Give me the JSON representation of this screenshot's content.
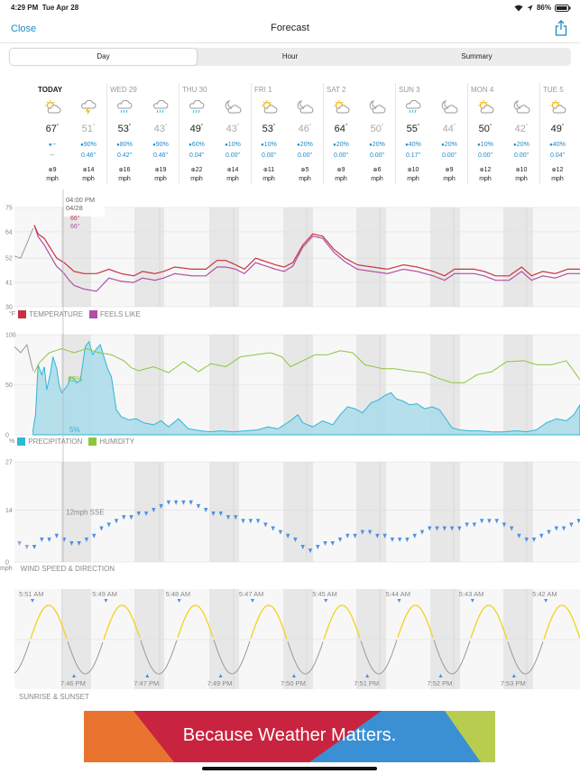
{
  "status_bar": {
    "time": "4:29 PM",
    "date": "Tue Apr 28",
    "battery": "86%"
  },
  "nav": {
    "close": "Close",
    "title": "Forecast"
  },
  "tabs": [
    {
      "label": "Day",
      "active": true
    },
    {
      "label": "Hour",
      "active": false
    },
    {
      "label": "Summary",
      "active": false
    }
  ],
  "days": [
    {
      "name": "TODAY",
      "today": true,
      "slots": [
        {
          "icon": "partly-sunny-icon",
          "temp": "67",
          "precip_pct": "--",
          "precip_amt": "--",
          "wind": "9",
          "wind_unit": "mph"
        },
        {
          "icon": "thunderstorm-icon",
          "temp": "51",
          "precip_pct": "90%",
          "precip_amt": "0.46\"",
          "wind": "14",
          "wind_unit": "mph"
        }
      ]
    },
    {
      "name": "WED 29",
      "slots": [
        {
          "icon": "rain-icon",
          "temp": "53",
          "precip_pct": "80%",
          "precip_amt": "0.42\"",
          "wind": "16",
          "wind_unit": "mph"
        },
        {
          "icon": "rain-icon",
          "temp": "43",
          "precip_pct": "90%",
          "precip_amt": "0.46\"",
          "wind": "19",
          "wind_unit": "mph"
        }
      ]
    },
    {
      "name": "THU 30",
      "slots": [
        {
          "icon": "rain-icon",
          "temp": "49",
          "precip_pct": "60%",
          "precip_amt": "0.04\"",
          "wind": "22",
          "wind_unit": "mph"
        },
        {
          "icon": "partly-cloudy-night-icon",
          "temp": "43",
          "precip_pct": "10%",
          "precip_amt": "0.00\"",
          "wind": "14",
          "wind_unit": "mph"
        }
      ]
    },
    {
      "name": "FRI 1",
      "slots": [
        {
          "icon": "partly-sunny-icon",
          "temp": "53",
          "precip_pct": "10%",
          "precip_amt": "0.00\"",
          "wind": "11",
          "wind_unit": "mph"
        },
        {
          "icon": "partly-cloudy-night-icon",
          "temp": "46",
          "precip_pct": "20%",
          "precip_amt": "0.00\"",
          "wind": "5",
          "wind_unit": "mph"
        }
      ]
    },
    {
      "name": "SAT 2",
      "slots": [
        {
          "icon": "partly-sunny-icon",
          "temp": "64",
          "precip_pct": "20%",
          "precip_amt": "0.00\"",
          "wind": "9",
          "wind_unit": "mph"
        },
        {
          "icon": "partly-cloudy-night-icon",
          "temp": "50",
          "precip_pct": "20%",
          "precip_amt": "0.00\"",
          "wind": "6",
          "wind_unit": "mph"
        }
      ]
    },
    {
      "name": "SUN 3",
      "slots": [
        {
          "icon": "rain-icon",
          "temp": "55",
          "precip_pct": "40%",
          "precip_amt": "0.17\"",
          "wind": "10",
          "wind_unit": "mph"
        },
        {
          "icon": "partly-cloudy-night-icon",
          "temp": "44",
          "precip_pct": "20%",
          "precip_amt": "0.00\"",
          "wind": "9",
          "wind_unit": "mph"
        }
      ]
    },
    {
      "name": "MON 4",
      "slots": [
        {
          "icon": "partly-sunny-icon",
          "temp": "50",
          "precip_pct": "10%",
          "precip_amt": "0.00\"",
          "wind": "12",
          "wind_unit": "mph"
        },
        {
          "icon": "partly-cloudy-night-icon",
          "temp": "42",
          "precip_pct": "20%",
          "precip_amt": "0.00\"",
          "wind": "10",
          "wind_unit": "mph"
        }
      ]
    },
    {
      "name": "TUE 5",
      "slots": [
        {
          "icon": "partly-sunny-icon",
          "temp": "49",
          "precip_pct": "40%",
          "precip_amt": "0.04\"",
          "wind": "12",
          "wind_unit": "mph"
        }
      ]
    }
  ],
  "degree": "°",
  "cursor": {
    "time": "04:00 PM",
    "date": "04/28",
    "temp": "66°",
    "feels": "66°",
    "humidity": "62%",
    "precip": "5%",
    "wind": "12mph SSE"
  },
  "chart_data": [
    {
      "type": "line",
      "name": "temperature",
      "ylim": [
        30,
        75
      ],
      "yticks": [
        "75",
        "64",
        "52",
        "41",
        "30"
      ],
      "unit_label": "°F",
      "series": [
        {
          "name": "TEMPERATURE",
          "color": "#c8323f"
        },
        {
          "name": "FEELS LIKE",
          "color": "#b04fa6"
        }
      ],
      "temp_knots": [
        [
          0,
          53
        ],
        [
          5,
          52
        ],
        [
          11,
          60
        ],
        [
          16,
          67
        ],
        [
          19,
          63
        ],
        [
          24,
          61
        ],
        [
          34,
          52
        ],
        [
          40,
          50
        ],
        [
          48,
          46
        ],
        [
          56,
          45
        ],
        [
          66,
          45
        ],
        [
          76,
          47
        ],
        [
          86,
          45
        ],
        [
          96,
          44
        ],
        [
          103,
          46
        ],
        [
          113,
          45
        ],
        [
          120,
          46
        ],
        [
          129,
          48
        ],
        [
          143,
          47
        ],
        [
          154,
          47
        ],
        [
          163,
          51
        ],
        [
          170,
          51
        ],
        [
          178,
          49
        ],
        [
          185,
          47
        ],
        [
          194,
          52
        ],
        [
          210,
          49
        ],
        [
          217,
          48
        ],
        [
          224,
          50
        ],
        [
          232,
          58
        ],
        [
          240,
          63
        ],
        [
          248,
          62
        ],
        [
          257,
          56
        ],
        [
          266,
          52
        ],
        [
          276,
          49
        ],
        [
          288,
          48
        ],
        [
          300,
          47
        ],
        [
          313,
          49
        ],
        [
          324,
          48
        ],
        [
          337,
          46
        ],
        [
          346,
          44
        ],
        [
          354,
          47
        ],
        [
          362,
          47
        ],
        [
          370,
          47
        ],
        [
          378,
          46
        ],
        [
          387,
          44
        ],
        [
          398,
          44
        ],
        [
          408,
          48
        ],
        [
          416,
          44
        ],
        [
          425,
          46
        ],
        [
          435,
          45
        ],
        [
          445,
          47
        ],
        [
          455,
          47
        ]
      ],
      "feels_offset": [
        [
          0,
          0
        ],
        [
          11,
          0
        ],
        [
          16,
          0
        ],
        [
          24,
          -3
        ],
        [
          36,
          -4
        ],
        [
          44,
          -6
        ],
        [
          56,
          -7
        ],
        [
          66,
          -8
        ],
        [
          76,
          -4
        ],
        [
          96,
          -3
        ],
        [
          129,
          -3
        ],
        [
          154,
          -3
        ],
        [
          170,
          -3
        ],
        [
          178,
          -2
        ],
        [
          194,
          -2
        ],
        [
          217,
          -2
        ],
        [
          232,
          -1
        ],
        [
          248,
          -1
        ],
        [
          276,
          -2
        ],
        [
          324,
          -2
        ],
        [
          354,
          -2
        ],
        [
          387,
          -2
        ],
        [
          455,
          -2
        ]
      ]
    },
    {
      "type": "area",
      "name": "precipitation_humidity",
      "ylim": [
        0,
        100
      ],
      "yticks": [
        "100",
        "50",
        "0"
      ],
      "unit_label": "%",
      "series": [
        {
          "name": "PRECIPITATION",
          "color": "#2fb6d8"
        },
        {
          "name": "HUMIDITY",
          "color": "#8cc63f"
        }
      ],
      "humidity_knots": [
        [
          0,
          88
        ],
        [
          5,
          82
        ],
        [
          10,
          90
        ],
        [
          15,
          64
        ],
        [
          16,
          62
        ],
        [
          20,
          72
        ],
        [
          28,
          82
        ],
        [
          38,
          86
        ],
        [
          48,
          82
        ],
        [
          58,
          86
        ],
        [
          68,
          82
        ],
        [
          78,
          80
        ],
        [
          88,
          74
        ],
        [
          94,
          67
        ],
        [
          100,
          64
        ],
        [
          112,
          68
        ],
        [
          124,
          62
        ],
        [
          136,
          73
        ],
        [
          148,
          63
        ],
        [
          158,
          71
        ],
        [
          170,
          68
        ],
        [
          182,
          78
        ],
        [
          194,
          80
        ],
        [
          206,
          82
        ],
        [
          215,
          78
        ],
        [
          222,
          68
        ],
        [
          232,
          74
        ],
        [
          242,
          80
        ],
        [
          252,
          80
        ],
        [
          262,
          84
        ],
        [
          272,
          82
        ],
        [
          282,
          70
        ],
        [
          296,
          66
        ],
        [
          306,
          66
        ],
        [
          316,
          64
        ],
        [
          330,
          62
        ],
        [
          342,
          56
        ],
        [
          352,
          52
        ],
        [
          362,
          52
        ],
        [
          372,
          60
        ],
        [
          384,
          63
        ],
        [
          396,
          73
        ],
        [
          410,
          74
        ],
        [
          420,
          70
        ],
        [
          432,
          70
        ],
        [
          444,
          74
        ],
        [
          455,
          55
        ]
      ],
      "precip_knots": [
        [
          15,
          5
        ],
        [
          17,
          20
        ],
        [
          19,
          70
        ],
        [
          22,
          60
        ],
        [
          24,
          68
        ],
        [
          26,
          45
        ],
        [
          29,
          62
        ],
        [
          31,
          78
        ],
        [
          34,
          66
        ],
        [
          36,
          50
        ],
        [
          38,
          42
        ],
        [
          40,
          45
        ],
        [
          43,
          50
        ],
        [
          45,
          58
        ],
        [
          48,
          56
        ],
        [
          50,
          52
        ],
        [
          53,
          54
        ],
        [
          57,
          88
        ],
        [
          60,
          93
        ],
        [
          63,
          80
        ],
        [
          66,
          86
        ],
        [
          69,
          90
        ],
        [
          72,
          78
        ],
        [
          75,
          66
        ],
        [
          78,
          58
        ],
        [
          82,
          25
        ],
        [
          86,
          18
        ],
        [
          92,
          15
        ],
        [
          98,
          16
        ],
        [
          104,
          12
        ],
        [
          112,
          10
        ],
        [
          118,
          14
        ],
        [
          124,
          8
        ],
        [
          132,
          16
        ],
        [
          140,
          6
        ],
        [
          150,
          4
        ],
        [
          158,
          3
        ],
        [
          166,
          4
        ],
        [
          176,
          3
        ],
        [
          186,
          4
        ],
        [
          196,
          5
        ],
        [
          204,
          8
        ],
        [
          212,
          6
        ],
        [
          222,
          14
        ],
        [
          228,
          20
        ],
        [
          232,
          12
        ],
        [
          240,
          8
        ],
        [
          248,
          14
        ],
        [
          256,
          10
        ],
        [
          262,
          20
        ],
        [
          268,
          28
        ],
        [
          274,
          26
        ],
        [
          280,
          22
        ],
        [
          287,
          32
        ],
        [
          293,
          35
        ],
        [
          299,
          40
        ],
        [
          303,
          42
        ],
        [
          307,
          36
        ],
        [
          312,
          34
        ],
        [
          318,
          30
        ],
        [
          324,
          31
        ],
        [
          330,
          26
        ],
        [
          336,
          28
        ],
        [
          342,
          25
        ],
        [
          346,
          18
        ],
        [
          352,
          7
        ],
        [
          358,
          5
        ],
        [
          366,
          4
        ],
        [
          374,
          4
        ],
        [
          384,
          3
        ],
        [
          394,
          3
        ],
        [
          404,
          4
        ],
        [
          412,
          3
        ],
        [
          420,
          5
        ],
        [
          428,
          12
        ],
        [
          436,
          16
        ],
        [
          444,
          14
        ],
        [
          450,
          20
        ],
        [
          455,
          30
        ]
      ]
    },
    {
      "type": "scatter",
      "name": "wind",
      "ylim": [
        0,
        27
      ],
      "yticks": [
        "27",
        "14",
        "0"
      ],
      "unit_label": "mph",
      "series": [
        {
          "name": "WIND SPEED & DIRECTION",
          "color": "#4a90e2"
        }
      ],
      "wind_points": [
        [
          4,
          5
        ],
        [
          10,
          4
        ],
        [
          16,
          4
        ],
        [
          22,
          6
        ],
        [
          28,
          6
        ],
        [
          34,
          7
        ],
        [
          40,
          6
        ],
        [
          46,
          5
        ],
        [
          52,
          5
        ],
        [
          58,
          6
        ],
        [
          64,
          7
        ],
        [
          70,
          9
        ],
        [
          76,
          10
        ],
        [
          82,
          11
        ],
        [
          88,
          12
        ],
        [
          94,
          12
        ],
        [
          100,
          13
        ],
        [
          106,
          13
        ],
        [
          112,
          14
        ],
        [
          118,
          15
        ],
        [
          124,
          16
        ],
        [
          130,
          16
        ],
        [
          136,
          16
        ],
        [
          142,
          16
        ],
        [
          148,
          15
        ],
        [
          154,
          14
        ],
        [
          160,
          13
        ],
        [
          166,
          13
        ],
        [
          172,
          12
        ],
        [
          178,
          12
        ],
        [
          184,
          11
        ],
        [
          190,
          11
        ],
        [
          196,
          11
        ],
        [
          202,
          10
        ],
        [
          208,
          9
        ],
        [
          214,
          8
        ],
        [
          220,
          7
        ],
        [
          226,
          6
        ],
        [
          232,
          4
        ],
        [
          238,
          3
        ],
        [
          244,
          4
        ],
        [
          250,
          5
        ],
        [
          256,
          5
        ],
        [
          262,
          6
        ],
        [
          268,
          7
        ],
        [
          274,
          7
        ],
        [
          280,
          8
        ],
        [
          286,
          8
        ],
        [
          292,
          7
        ],
        [
          298,
          7
        ],
        [
          304,
          6
        ],
        [
          310,
          6
        ],
        [
          316,
          6
        ],
        [
          322,
          7
        ],
        [
          328,
          8
        ],
        [
          334,
          9
        ],
        [
          340,
          9
        ],
        [
          346,
          9
        ],
        [
          352,
          9
        ],
        [
          358,
          9
        ],
        [
          364,
          10
        ],
        [
          370,
          10
        ],
        [
          376,
          11
        ],
        [
          382,
          11
        ],
        [
          388,
          11
        ],
        [
          394,
          10
        ],
        [
          400,
          9
        ],
        [
          406,
          7
        ],
        [
          412,
          6
        ],
        [
          418,
          6
        ],
        [
          424,
          7
        ],
        [
          430,
          8
        ],
        [
          436,
          9
        ],
        [
          442,
          9
        ],
        [
          448,
          10
        ],
        [
          454,
          11
        ]
      ]
    },
    {
      "type": "line",
      "name": "sun",
      "series": [
        {
          "name": "SUNRISE & SUNSET",
          "color": "#f2d31b"
        }
      ],
      "sunrise": [
        "5:51 AM",
        "5:49 AM",
        "5:48 AM",
        "5:47 AM",
        "5:45 AM",
        "5:44 AM",
        "5:43 AM",
        "5:42 AM"
      ],
      "sunset": [
        "7:46 PM",
        "7:47 PM",
        "7:49 PM",
        "7:50 PM",
        "7:51 PM",
        "7:52 PM",
        "7:53 PM"
      ]
    }
  ],
  "ad": {
    "text": "Because Weather Matters."
  }
}
